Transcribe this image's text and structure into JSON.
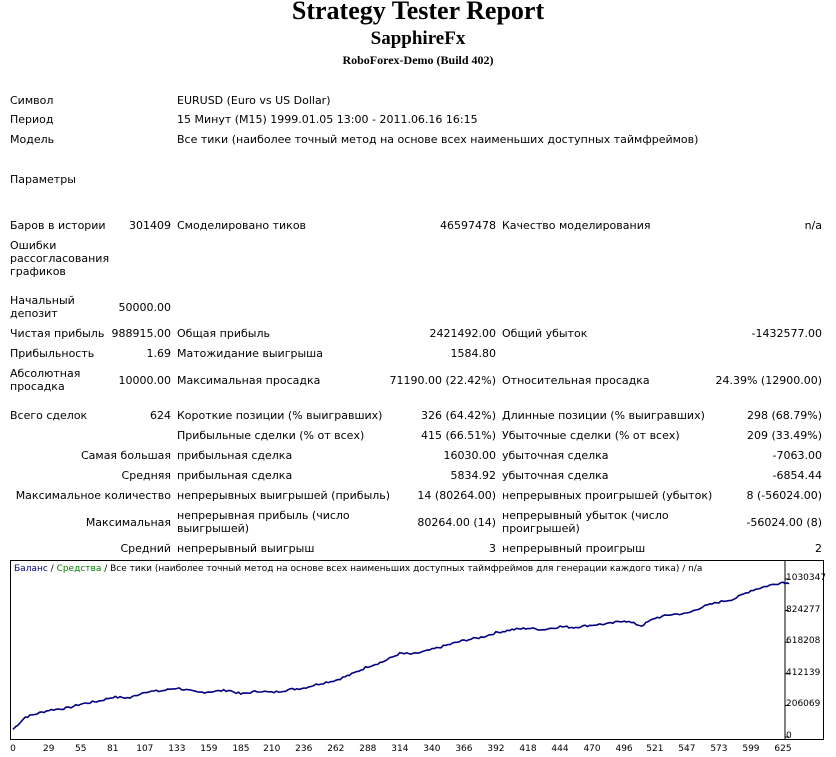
{
  "header": {
    "title": "Strategy Tester Report",
    "subtitle": "SapphireFx",
    "server": "RoboForex-Demo (Build 402)"
  },
  "info": {
    "symbol_label": "Символ",
    "symbol_value": "EURUSD (Euro vs US Dollar)",
    "period_label": "Период",
    "period_value": "15 Минут (M15) 1999.01.05 13:00 - 2011.06.16 16:15",
    "model_label": "Модель",
    "model_value": "Все тики (наиболее точный метод на основе всех наименьших доступных таймфреймов)",
    "params_label": "Параметры"
  },
  "stats": {
    "bars_label": "Баров в истории",
    "bars_value": "301409",
    "ticks_label": "Смоделировано тиков",
    "ticks_value": "46597478",
    "quality_label": "Качество моделирования",
    "quality_value": "n/a",
    "errors_label": "Ошибки рассогласования графиков",
    "deposit_label": "Начальный депозит",
    "deposit_value": "50000.00",
    "net_label": "Чистая прибыль",
    "net_value": "988915.00",
    "gross_profit_label": "Общая прибыль",
    "gross_profit_value": "2421492.00",
    "gross_loss_label": "Общий убыток",
    "gross_loss_value": "-1432577.00",
    "pf_label": "Прибыльность",
    "pf_value": "1.69",
    "exp_label": "Матожидание выигрыша",
    "exp_value": "1584.80",
    "abs_dd_label": "Абсолютная просадка",
    "abs_dd_value": "10000.00",
    "max_dd_label": "Максимальная просадка",
    "max_dd_value": "71190.00 (22.42%)",
    "rel_dd_label": "Относительная просадка",
    "rel_dd_value": "24.39% (12900.00)",
    "trades_label": "Всего сделок",
    "trades_value": "624",
    "short_label": "Короткие позиции (% выигравших)",
    "short_value": "326 (64.42%)",
    "long_label": "Длинные позиции (% выигравших)",
    "long_value": "298 (68.79%)",
    "prof_trades_label": "Прибыльные сделки (% от всех)",
    "prof_trades_value": "415 (66.51%)",
    "loss_trades_label": "Убыточные сделки (% от всех)",
    "loss_trades_value": "209 (33.49%)",
    "largest_label": "Самая большая",
    "largest_prof_label": "прибыльная сделка",
    "largest_prof_value": "16030.00",
    "largest_loss_label": "убыточная сделка",
    "largest_loss_value": "-7063.00",
    "avg_label": "Средняя",
    "avg_prof_label": "прибыльная сделка",
    "avg_prof_value": "5834.92",
    "avg_loss_label": "убыточная сделка",
    "avg_loss_value": "-6854.44",
    "maxcount_label": "Максимальное количество",
    "maxcount_wins_label": "непрерывных выигрышей (прибыль)",
    "maxcount_wins_value": "14 (80264.00)",
    "maxcount_losses_label": "непрерывных проигрышей (убыток)",
    "maxcount_losses_value": "8 (-56024.00)",
    "maximal_label": "Максимальная",
    "maximal_profit_label": "непрерывная прибыль (число выигрышей)",
    "maximal_profit_value": "80264.00 (14)",
    "maximal_loss_label": "непрерывный убыток (число проигрышей)",
    "maximal_loss_value": "-56024.00 (8)",
    "avgcons_label": "Средний",
    "avgcons_win_label": "непрерывный выигрыш",
    "avgcons_win_value": "3",
    "avgcons_loss_label": "непрерывный проигрыш",
    "avgcons_loss_value": "2"
  },
  "chart_data": {
    "type": "line",
    "legend_balance": "Баланс",
    "legend_sep1": " / ",
    "legend_equity": "Средства",
    "legend_rest": " / Все тики (наиболее точный метод на основе всех наименьших доступных таймфреймов для генерации каждого тика) / n/a",
    "colors": {
      "balance": "#000080",
      "equity": "#008000"
    },
    "yticks": [
      "1030347",
      "824277",
      "618208",
      "412139",
      "206069",
      "0"
    ],
    "ytick_values": [
      1030347,
      824277,
      618208,
      412139,
      206069,
      0
    ],
    "xticks": [
      "0",
      "29",
      "55",
      "81",
      "107",
      "133",
      "159",
      "185",
      "210",
      "236",
      "262",
      "288",
      "314",
      "340",
      "366",
      "392",
      "418",
      "444",
      "470",
      "496",
      "521",
      "547",
      "573",
      "599",
      "625"
    ],
    "xtick_values": [
      0,
      29,
      55,
      81,
      107,
      133,
      159,
      185,
      210,
      236,
      262,
      288,
      314,
      340,
      366,
      392,
      418,
      444,
      470,
      496,
      521,
      547,
      573,
      599,
      625
    ],
    "xlim": [
      0,
      625
    ],
    "ylim": [
      0,
      1030347
    ],
    "series": [
      {
        "name": "Баланс",
        "x": [
          0,
          10,
          29,
          45,
          55,
          70,
          81,
          95,
          107,
          120,
          133,
          150,
          159,
          175,
          185,
          200,
          210,
          225,
          236,
          250,
          262,
          275,
          288,
          300,
          314,
          325,
          340,
          355,
          366,
          380,
          392,
          405,
          418,
          430,
          444,
          455,
          470,
          485,
          496,
          510,
          521,
          535,
          547,
          560,
          573,
          585,
          599,
          612,
          625,
          630
        ],
        "y": [
          50000,
          130000,
          175000,
          190000,
          215000,
          235000,
          260000,
          255000,
          295000,
          300000,
          320000,
          290000,
          295000,
          305000,
          280000,
          300000,
          290000,
          310000,
          320000,
          350000,
          370000,
          410000,
          460000,
          490000,
          545000,
          540000,
          570000,
          605000,
          630000,
          650000,
          680000,
          700000,
          710000,
          700000,
          720000,
          715000,
          730000,
          740000,
          760000,
          725000,
          775000,
          800000,
          805000,
          850000,
          880000,
          900000,
          955000,
          985000,
          1010000,
          1000000
        ]
      }
    ]
  }
}
